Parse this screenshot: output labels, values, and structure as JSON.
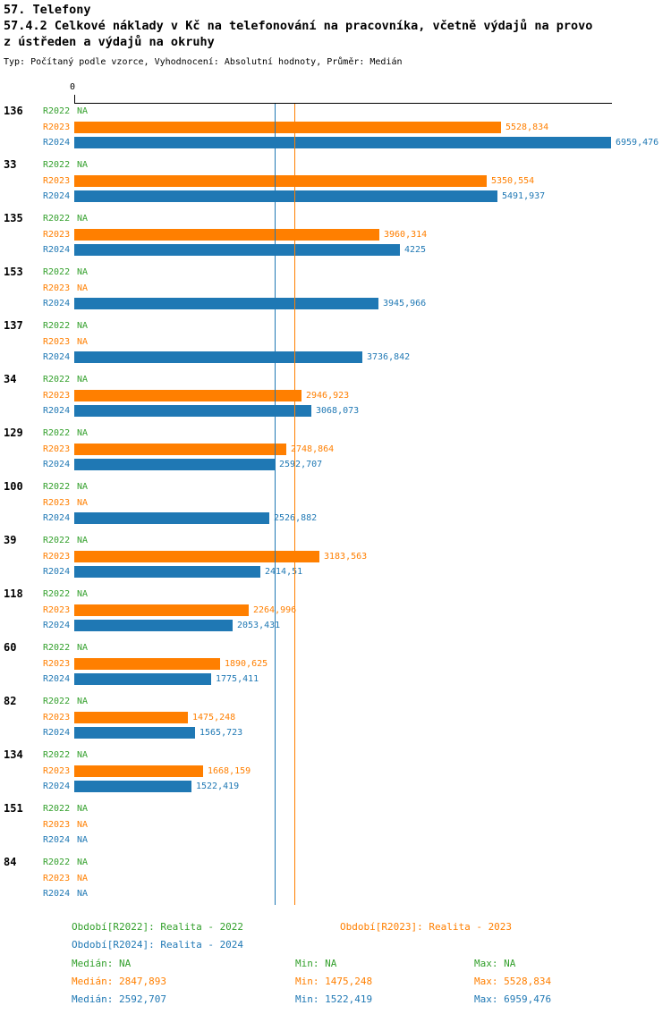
{
  "page": {
    "heading": "57. Telefony"
  },
  "chart_data": {
    "type": "bar",
    "orientation": "horizontal",
    "title_lines": [
      "57.4.2 Celkové náklady v Kč na telefonování na pracovníka, včetně výdajů na provo",
      "z ústředen a výdajů na okruhy"
    ],
    "subtitle": "Typ: Počítaný podle vzorce, Vyhodnocení: Absolutní hodnoty, Průměr: Medián",
    "x_axis": {
      "zero_label": "0",
      "min": 0,
      "max": 6959.476,
      "grid": false
    },
    "series": [
      "R2022",
      "R2023",
      "R2024"
    ],
    "colors": {
      "R2022": "#33a02c",
      "R2023": "#ff7f00",
      "R2024": "#1f78b4"
    },
    "median_lines": [
      {
        "series": "R2023",
        "value": 2847.893
      },
      {
        "series": "R2024",
        "value": 2592.707
      }
    ],
    "groups": [
      {
        "id": "136",
        "bars": [
          {
            "series": "R2022",
            "value": null,
            "label": "NA"
          },
          {
            "series": "R2023",
            "value": 5528.834,
            "label": "5528,834"
          },
          {
            "series": "R2024",
            "value": 6959.476,
            "label": "6959,476"
          }
        ]
      },
      {
        "id": "33",
        "bars": [
          {
            "series": "R2022",
            "value": null,
            "label": "NA"
          },
          {
            "series": "R2023",
            "value": 5350.554,
            "label": "5350,554"
          },
          {
            "series": "R2024",
            "value": 5491.937,
            "label": "5491,937"
          }
        ]
      },
      {
        "id": "135",
        "bars": [
          {
            "series": "R2022",
            "value": null,
            "label": "NA"
          },
          {
            "series": "R2023",
            "value": 3960.314,
            "label": "3960,314"
          },
          {
            "series": "R2024",
            "value": 4225,
            "label": "4225"
          }
        ]
      },
      {
        "id": "153",
        "bars": [
          {
            "series": "R2022",
            "value": null,
            "label": "NA"
          },
          {
            "series": "R2023",
            "value": null,
            "label": "NA"
          },
          {
            "series": "R2024",
            "value": 3945.966,
            "label": "3945,966"
          }
        ]
      },
      {
        "id": "137",
        "bars": [
          {
            "series": "R2022",
            "value": null,
            "label": "NA"
          },
          {
            "series": "R2023",
            "value": null,
            "label": "NA"
          },
          {
            "series": "R2024",
            "value": 3736.842,
            "label": "3736,842"
          }
        ]
      },
      {
        "id": "34",
        "bars": [
          {
            "series": "R2022",
            "value": null,
            "label": "NA"
          },
          {
            "series": "R2023",
            "value": 2946.923,
            "label": "2946,923"
          },
          {
            "series": "R2024",
            "value": 3068.073,
            "label": "3068,073"
          }
        ]
      },
      {
        "id": "129",
        "bars": [
          {
            "series": "R2022",
            "value": null,
            "label": "NA"
          },
          {
            "series": "R2023",
            "value": 2748.864,
            "label": "2748,864"
          },
          {
            "series": "R2024",
            "value": 2592.707,
            "label": "2592,707"
          }
        ]
      },
      {
        "id": "100",
        "bars": [
          {
            "series": "R2022",
            "value": null,
            "label": "NA"
          },
          {
            "series": "R2023",
            "value": null,
            "label": "NA"
          },
          {
            "series": "R2024",
            "value": 2526.882,
            "label": "2526,882"
          }
        ]
      },
      {
        "id": "39",
        "bars": [
          {
            "series": "R2022",
            "value": null,
            "label": "NA"
          },
          {
            "series": "R2023",
            "value": 3183.563,
            "label": "3183,563"
          },
          {
            "series": "R2024",
            "value": 2414.51,
            "label": "2414,51"
          }
        ]
      },
      {
        "id": "118",
        "bars": [
          {
            "series": "R2022",
            "value": null,
            "label": "NA"
          },
          {
            "series": "R2023",
            "value": 2264.996,
            "label": "2264,996"
          },
          {
            "series": "R2024",
            "value": 2053.431,
            "label": "2053,431"
          }
        ]
      },
      {
        "id": "60",
        "bars": [
          {
            "series": "R2022",
            "value": null,
            "label": "NA"
          },
          {
            "series": "R2023",
            "value": 1890.625,
            "label": "1890,625"
          },
          {
            "series": "R2024",
            "value": 1775.411,
            "label": "1775,411"
          }
        ]
      },
      {
        "id": "82",
        "bars": [
          {
            "series": "R2022",
            "value": null,
            "label": "NA"
          },
          {
            "series": "R2023",
            "value": 1475.248,
            "label": "1475,248"
          },
          {
            "series": "R2024",
            "value": 1565.723,
            "label": "1565,723"
          }
        ]
      },
      {
        "id": "134",
        "bars": [
          {
            "series": "R2022",
            "value": null,
            "label": "NA"
          },
          {
            "series": "R2023",
            "value": 1668.159,
            "label": "1668,159"
          },
          {
            "series": "R2024",
            "value": 1522.419,
            "label": "1522,419"
          }
        ]
      },
      {
        "id": "151",
        "bars": [
          {
            "series": "R2022",
            "value": null,
            "label": "NA"
          },
          {
            "series": "R2023",
            "value": null,
            "label": "NA"
          },
          {
            "series": "R2024",
            "value": null,
            "label": "NA"
          }
        ]
      },
      {
        "id": "84",
        "bars": [
          {
            "series": "R2022",
            "value": null,
            "label": "NA"
          },
          {
            "series": "R2023",
            "value": null,
            "label": "NA"
          },
          {
            "series": "R2024",
            "value": null,
            "label": "NA"
          }
        ]
      }
    ],
    "legend": {
      "items": [
        {
          "series": "R2022",
          "label": "Období[R2022]: Realita - 2022"
        },
        {
          "series": "R2023",
          "label": "Období[R2023]: Realita - 2023"
        },
        {
          "series": "R2024",
          "label": "Období[R2024]: Realita - 2024"
        }
      ]
    },
    "stats": {
      "rows": [
        {
          "series": "R2022",
          "median": "Medián: NA",
          "min": "Min: NA",
          "max": "Max: NA"
        },
        {
          "series": "R2023",
          "median": "Medián: 2847,893",
          "min": "Min: 1475,248",
          "max": "Max: 5528,834"
        },
        {
          "series": "R2024",
          "median": "Medián: 2592,707",
          "min": "Min: 1522,419",
          "max": "Max: 6959,476"
        }
      ]
    }
  }
}
